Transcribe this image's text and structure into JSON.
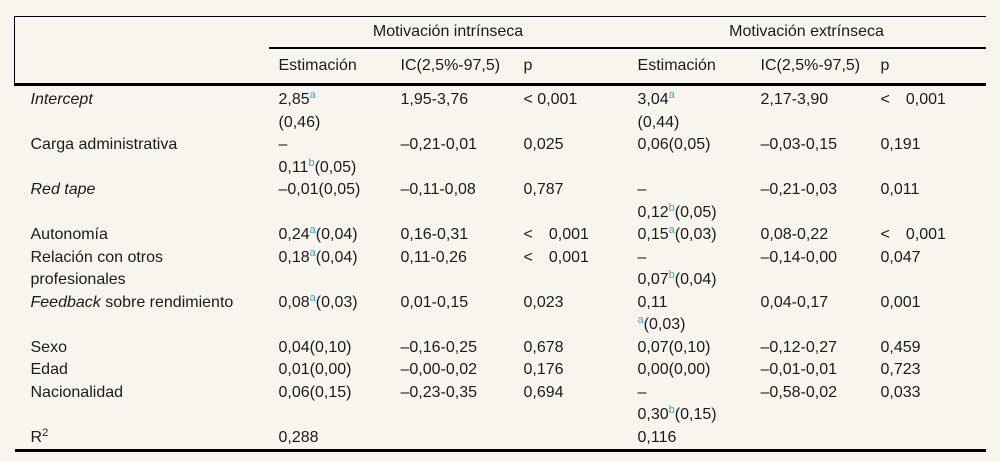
{
  "colors": {
    "background": "#f8f5ee",
    "text": "#1b1b1b",
    "rule": "#000000",
    "superscript_accent": "#3aa0d9"
  },
  "table": {
    "groups": [
      {
        "label": "Motivación intrínseca"
      },
      {
        "label": "Motivación extrínseca"
      }
    ],
    "subheaders": [
      "Estimación",
      "IC(2,5%-97,5)",
      "p",
      "Estimación",
      "IC(2,5%-97,5)",
      "p"
    ],
    "rows": [
      {
        "label": "*Intercept*",
        "cells": [
          "2,85^a^\n(0,46)",
          "1,95-3,76",
          "< 0,001",
          "3,04^a^\n(0,44)",
          "2,17-3,90",
          "< 0,001"
        ]
      },
      {
        "label": "Carga administrativa",
        "cells": [
          "–\n0,11^b^(0,05)",
          "–0,21-0,01",
          "0,025",
          "0,06(0,05)",
          "–0,03-0,15",
          "0,191"
        ]
      },
      {
        "label": "*Red tape*",
        "cells": [
          "–0,01(0,05)",
          "–0,11-0,08",
          "0,787",
          "–\n0,12^b^(0,05)",
          "–0,21-0,03",
          "0,011"
        ]
      },
      {
        "label": "Autonomía",
        "cells": [
          "0,24^a^(0,04)",
          "0,16-0,31",
          "< 0,001",
          "0,15^a^(0,03)",
          "0,08-0,22",
          "< 0,001"
        ]
      },
      {
        "label": "Relación con otros\nprofesionales",
        "cells": [
          "0,18^a^(0,04)",
          "0,11-0,26",
          "< 0,001",
          "–\n0,07^b^(0,04)",
          "–0,14-0,00",
          "0,047"
        ]
      },
      {
        "label": "*Feedback* sobre rendimiento",
        "cells": [
          "0,08^a^(0,03)",
          "0,01-0,15",
          "0,023",
          "0,11\n^a^(0,03)",
          "0,04-0,17",
          "0,001"
        ]
      },
      {
        "label": "Sexo",
        "cells": [
          "0,04(0,10)",
          "–0,16-0,25",
          "0,678",
          "0,07(0,10)",
          "–0,12-0,27",
          "0,459"
        ]
      },
      {
        "label": "Edad",
        "cells": [
          "0,01(0,00)",
          "–0,00-0,02",
          "0,176",
          "0,00(0,00)",
          "–0,01-0,01",
          "0,723"
        ]
      },
      {
        "label": "Nacionalidad",
        "cells": [
          "0,06(0,15)",
          "–0,23-0,35",
          "0,694",
          "–\n0,30^b^(0,15)",
          "–0,58-0,02",
          "0,033"
        ]
      },
      {
        "label": "R~2~",
        "cells": [
          "0,288",
          "",
          "",
          "0,116",
          "",
          ""
        ]
      }
    ],
    "column_keys": [
      "estimation",
      "ci",
      "p",
      "estimation",
      "ci",
      "p"
    ]
  }
}
